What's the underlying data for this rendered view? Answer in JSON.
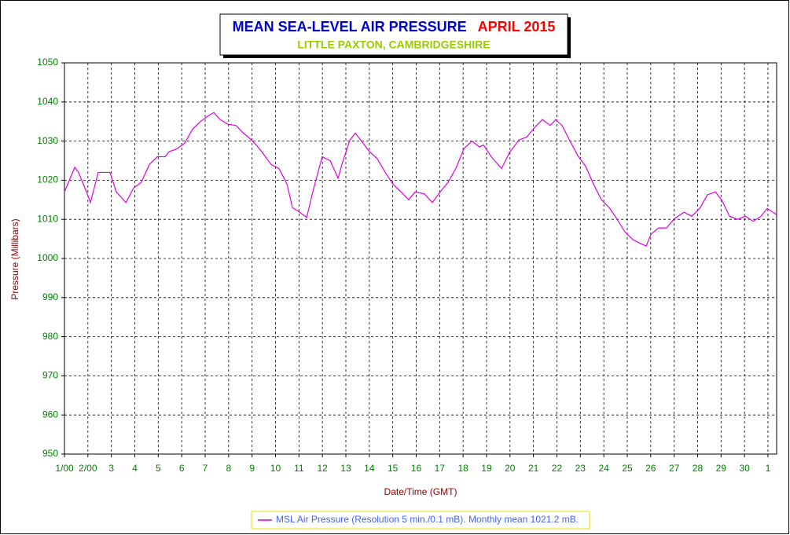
{
  "chart_data": {
    "type": "line",
    "title": "MEAN SEA-LEVEL AIR PRESSURE",
    "period": "APRIL 2015",
    "subtitle": "LITTLE PAXTON, CAMBRIDGESHIRE",
    "x_label": "Date/Time (GMT)",
    "y_label": "Pressure (Millibars)",
    "grid": true,
    "xlim": [
      1,
      31.37
    ],
    "ylim": [
      950,
      1050
    ],
    "yticks": [
      950,
      960,
      970,
      980,
      990,
      1000,
      1010,
      1020,
      1030,
      1040,
      1050
    ],
    "xticks": [
      {
        "value": 1,
        "label": "1/00"
      },
      {
        "value": 2,
        "label": "2/00"
      },
      3,
      4,
      5,
      6,
      7,
      8,
      9,
      10,
      11,
      12,
      13,
      14,
      15,
      16,
      17,
      18,
      19,
      20,
      21,
      22,
      23,
      24,
      25,
      26,
      27,
      28,
      29,
      30,
      {
        "value": 31,
        "label": "1"
      }
    ],
    "x": [
      1.0,
      1.44,
      1.6,
      1.94,
      2.11,
      2.44,
      2.94,
      3.21,
      3.62,
      3.95,
      4.28,
      4.62,
      4.96,
      5.29,
      5.46,
      5.79,
      6.13,
      6.46,
      6.8,
      7.14,
      7.37,
      7.64,
      7.97,
      8.31,
      8.64,
      8.98,
      9.32,
      9.82,
      10.15,
      10.49,
      10.72,
      10.99,
      11.33,
      11.59,
      11.99,
      12.33,
      12.67,
      12.83,
      13.17,
      13.4,
      13.67,
      14.01,
      14.34,
      14.68,
      15.01,
      15.35,
      15.68,
      15.95,
      16.35,
      16.69,
      17.02,
      17.36,
      17.69,
      18.03,
      18.37,
      18.7,
      18.87,
      19.2,
      19.64,
      19.97,
      20.38,
      20.71,
      21.05,
      21.38,
      21.72,
      21.95,
      22.22,
      22.56,
      22.89,
      23.23,
      23.56,
      23.9,
      24.23,
      24.57,
      24.9,
      25.24,
      25.57,
      25.81,
      26.01,
      26.34,
      26.68,
      27.01,
      27.42,
      27.75,
      28.09,
      28.42,
      28.76,
      29.03,
      29.36,
      29.7,
      30.04,
      30.37,
      30.7,
      30.97,
      31.37
    ],
    "series": [
      {
        "name": "MSL Air Pressure (Resolution 5 min./0.1 mB). Monthly mean 1021.2 mB.",
        "color": "#e000e0",
        "values": [
          1017,
          1023.3,
          1022,
          1017,
          1014.3,
          1022,
          1022,
          1017,
          1014.3,
          1018,
          1019.5,
          1024,
          1026,
          1026,
          1027.3,
          1028,
          1029.5,
          1033,
          1035,
          1036.5,
          1037.3,
          1035.5,
          1034.3,
          1034,
          1032,
          1030.3,
          1028,
          1024,
          1023,
          1019,
          1013,
          1012,
          1010.5,
          1017,
          1026,
          1025,
          1020.5,
          1024,
          1030.3,
          1032,
          1030,
          1027.3,
          1025.5,
          1022,
          1019,
          1017,
          1015,
          1017,
          1016.5,
          1014.3,
          1017,
          1019.5,
          1023,
          1028,
          1030,
          1028.5,
          1029,
          1026,
          1023,
          1027,
          1030.3,
          1031,
          1033.5,
          1035.5,
          1034,
          1035.5,
          1034,
          1030,
          1026.3,
          1023.5,
          1019,
          1015,
          1013,
          1010,
          1006.8,
          1004.8,
          1003.8,
          1003.2,
          1006.2,
          1007.8,
          1007.8,
          1010.2,
          1011.8,
          1010.8,
          1012.8,
          1016.3,
          1017,
          1014.9,
          1010.8,
          1010,
          1010.8,
          1009.5,
          1010.8,
          1012.8,
          1011.2
        ]
      }
    ]
  }
}
